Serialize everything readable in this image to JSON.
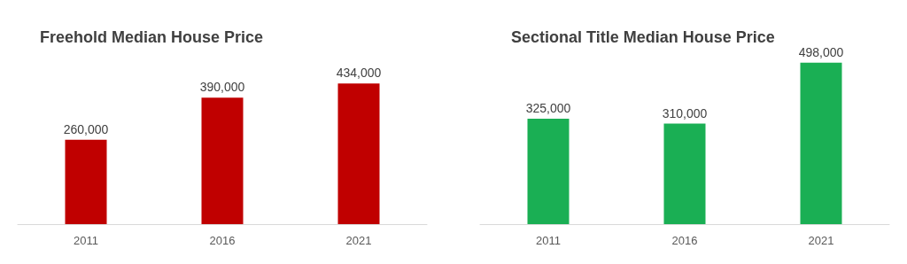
{
  "chart_data": [
    {
      "type": "bar",
      "title": "Freehold Median House Price",
      "categories": [
        "2011",
        "2016",
        "2021"
      ],
      "values": [
        260000,
        390000,
        434000
      ],
      "value_labels": [
        "260,000",
        "390,000",
        "434,000"
      ],
      "color": "#c00000"
    },
    {
      "type": "bar",
      "title": "Sectional Title Median House Price",
      "categories": [
        "2011",
        "2016",
        "2021"
      ],
      "values": [
        325000,
        310000,
        498000
      ],
      "value_labels": [
        "325,000",
        "310,000",
        "498,000"
      ],
      "color": "#1aaf54"
    }
  ]
}
